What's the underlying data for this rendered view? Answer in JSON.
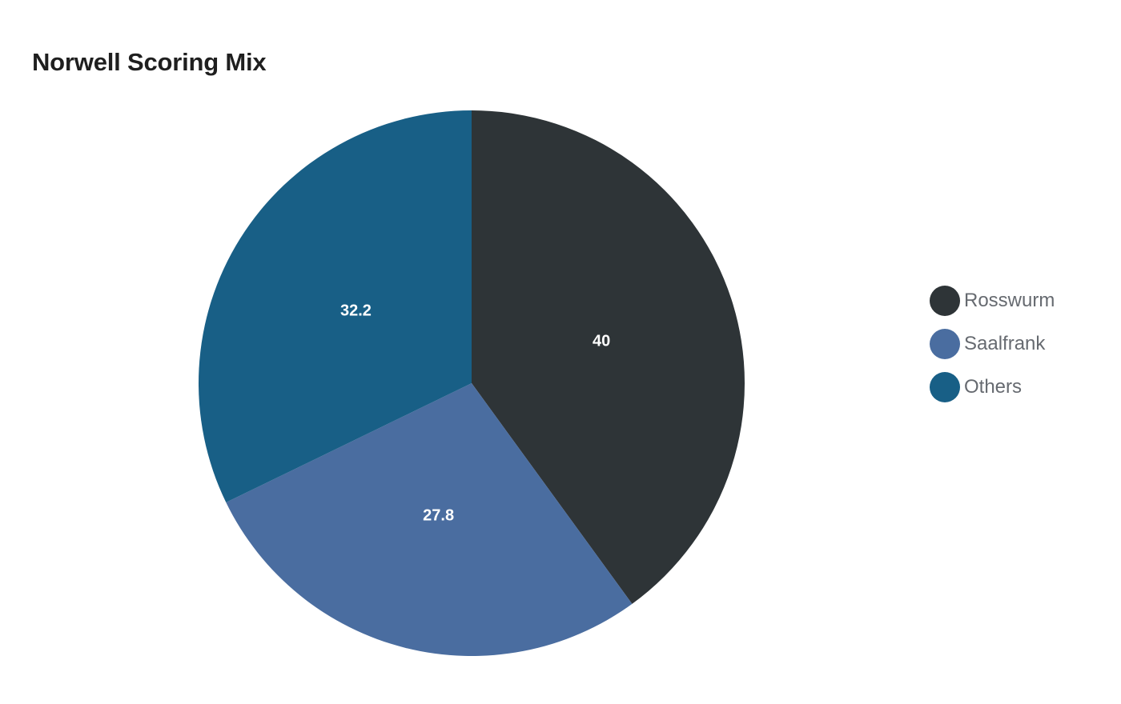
{
  "chart_data": {
    "type": "pie",
    "title": "Norwell Scoring Mix",
    "slices": [
      {
        "label": "Rosswurm",
        "value": 40,
        "display": "40",
        "color": "#2e3437"
      },
      {
        "label": "Saalfrank",
        "value": 27.8,
        "display": "27.8",
        "color": "#4a6da0"
      },
      {
        "label": "Others",
        "value": 32.2,
        "display": "32.2",
        "color": "#185f86"
      }
    ],
    "legend_position": "right",
    "start_angle": "12 o'clock",
    "direction": "clockwise"
  }
}
